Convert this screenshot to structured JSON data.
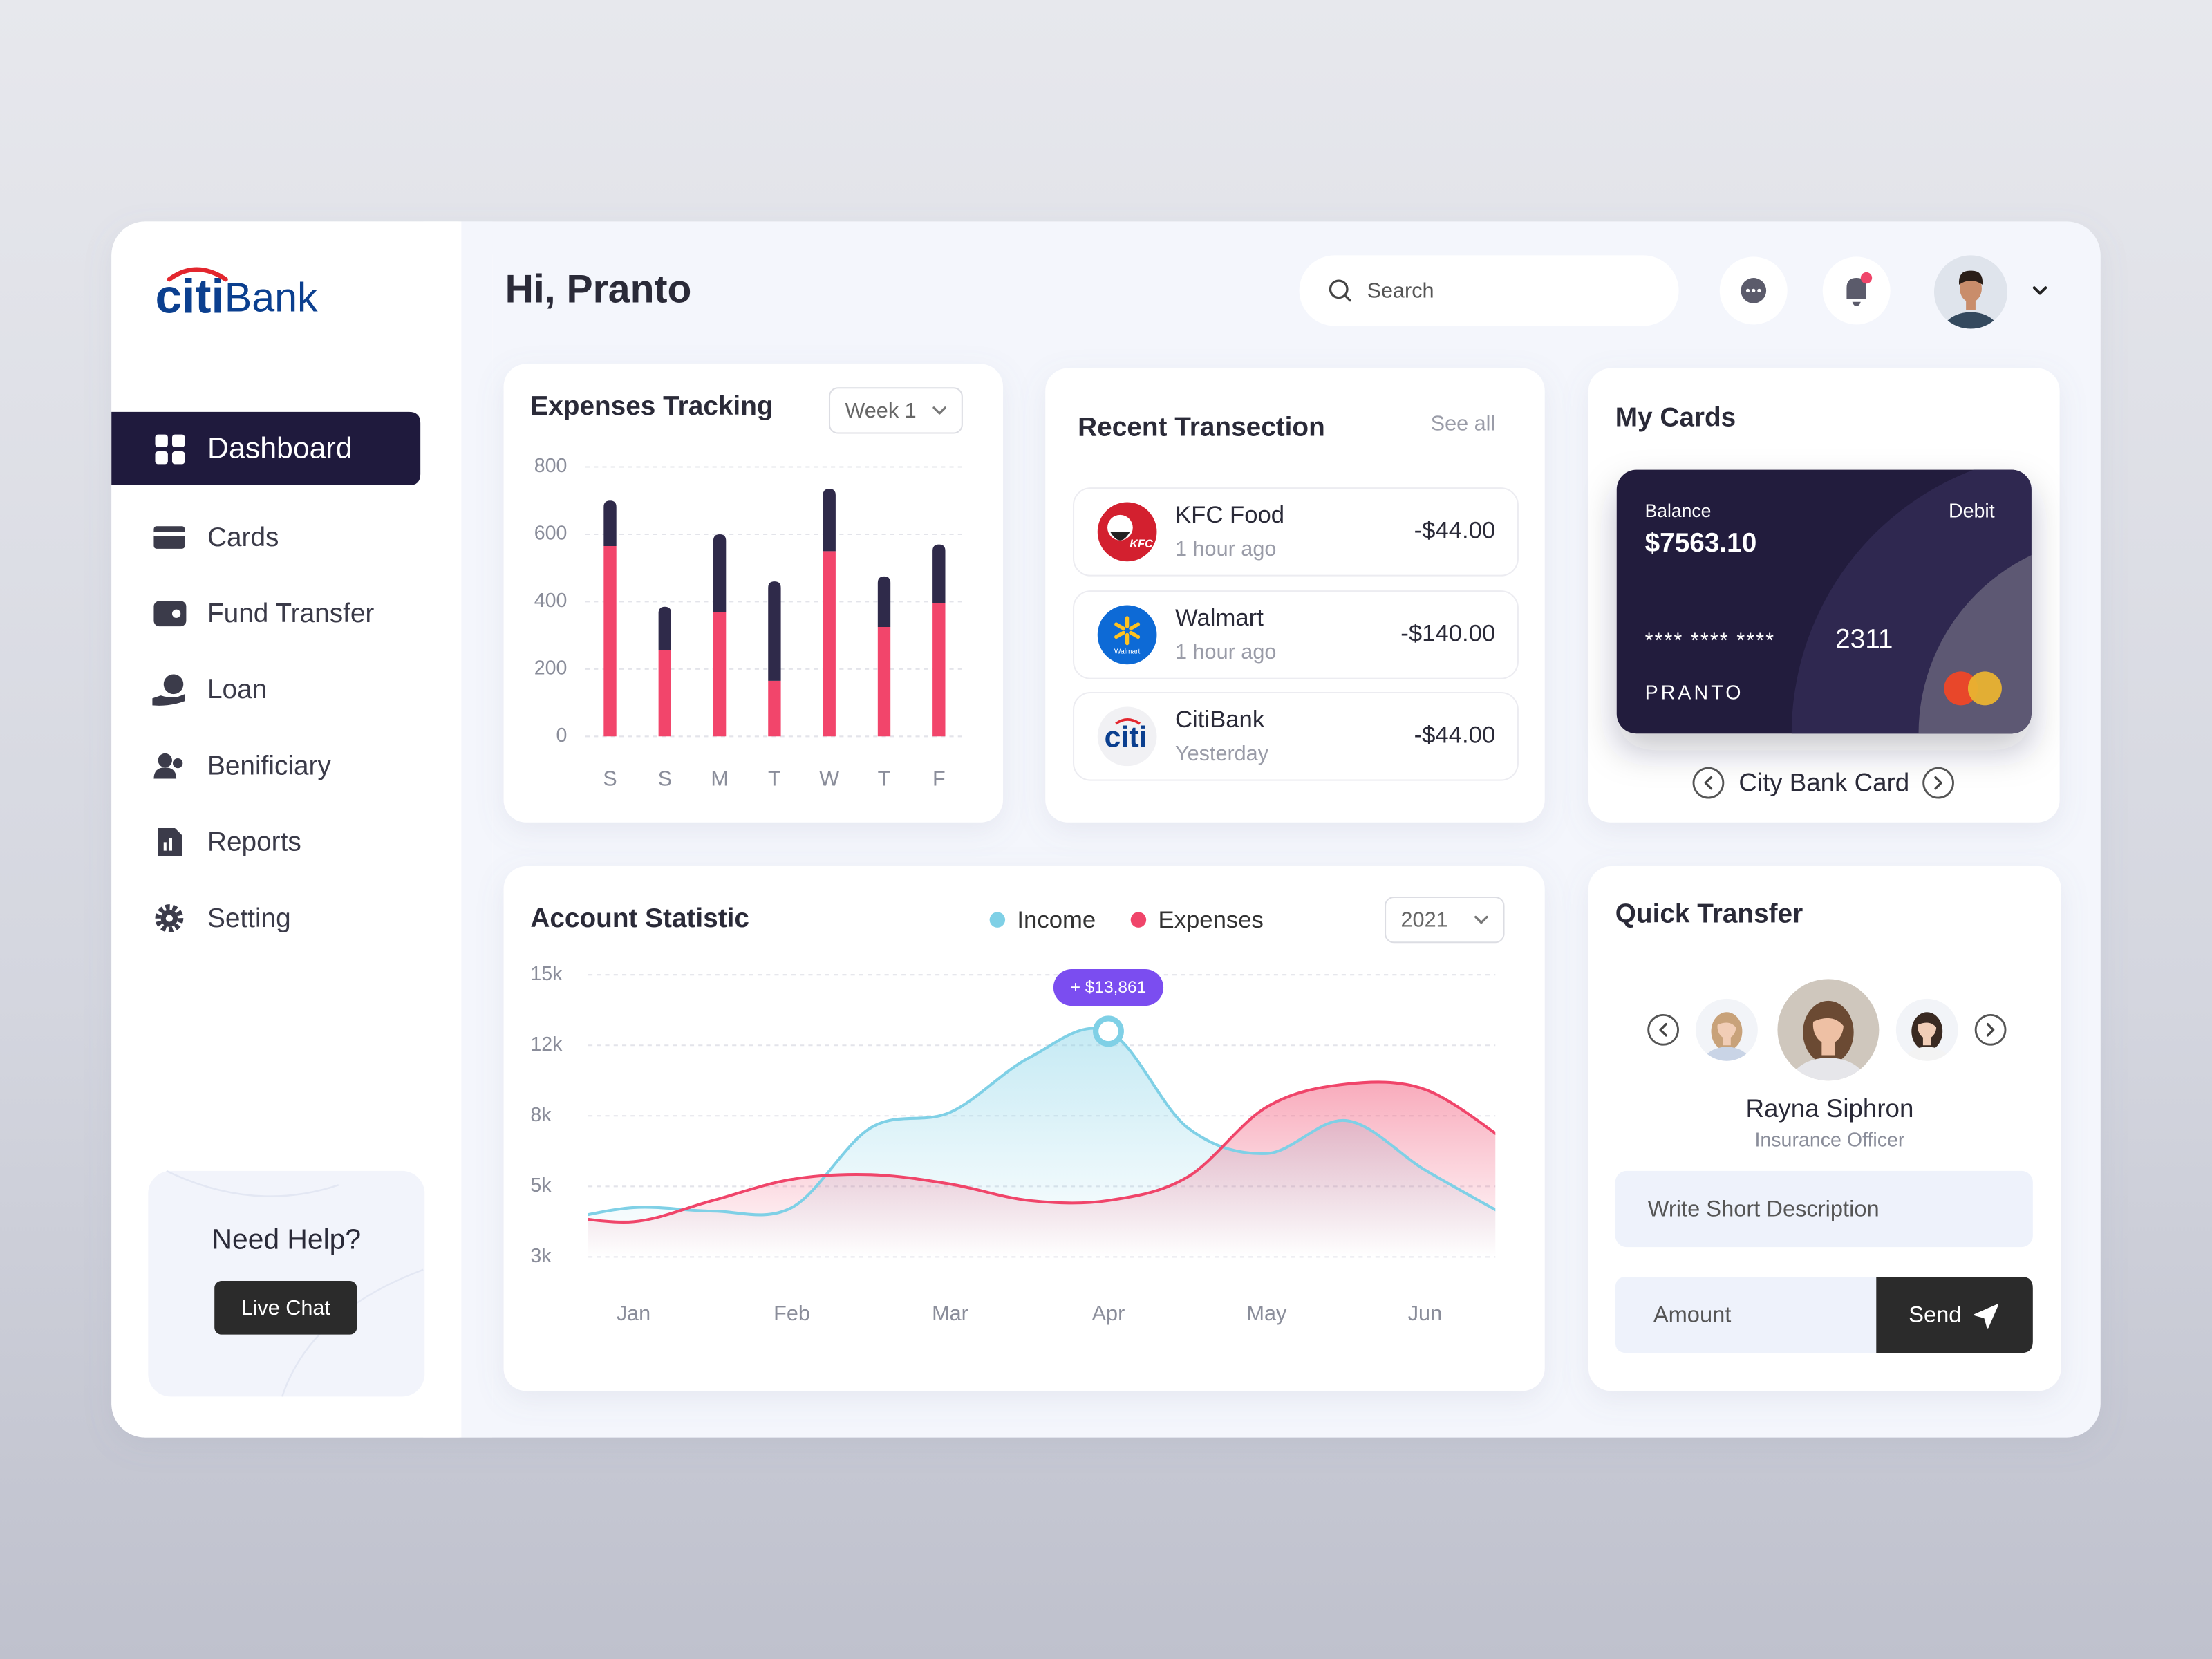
{
  "sidebar": {
    "logo": {
      "first": "citi",
      "second": "Bank"
    },
    "nav": [
      "Dashboard",
      "Cards",
      "Fund Transfer",
      "Loan",
      "Benificiary",
      "Reports",
      "Setting"
    ],
    "help": {
      "title": "Need Help?",
      "button": "Live Chat"
    }
  },
  "header": {
    "greeting": "Hi, Pranto",
    "search": "Search"
  },
  "filters": {
    "expenses": "Week 1",
    "statistic": "2021"
  },
  "chart_data": [
    {
      "type": "bar",
      "stacked": true,
      "title": "Expenses Tracking",
      "categories": [
        "S",
        "S",
        "M",
        "T",
        "W",
        "T",
        "F"
      ],
      "series": [
        {
          "color": "#f2456b",
          "values": [
            565,
            255,
            370,
            165,
            550,
            325,
            395
          ]
        },
        {
          "color": "#2f2a4a",
          "values": [
            135,
            130,
            230,
            295,
            185,
            150,
            175
          ]
        }
      ],
      "ylim": [
        0,
        800
      ],
      "yticks": [
        0,
        200,
        400,
        600,
        800
      ],
      "grid": true
    },
    {
      "type": "area",
      "title": "Account Statistic",
      "categories": [
        null,
        "Jan",
        null,
        "Feb",
        null,
        "Mar",
        null,
        "Apr",
        null,
        "May",
        null,
        "Jun",
        null
      ],
      "series": [
        {
          "name": "Income",
          "color": "#7fd0e6",
          "values": [
            4000,
            4400,
            4300,
            4400,
            7500,
            8200,
            11300,
            12600,
            7500,
            6400,
            7800,
            5700,
            4200
          ]
        },
        {
          "name": "Expenses",
          "color": "#f0456a",
          "values": [
            4200,
            4000,
            4600,
            5300,
            5500,
            5100,
            4600,
            4600,
            5400,
            8500,
            9800,
            9500,
            7000
          ]
        }
      ],
      "ylim": [
        3000,
        15000
      ],
      "yticks": [
        {
          "value": 3000,
          "label": "3k"
        },
        {
          "value": 5000,
          "label": "5k"
        },
        {
          "value": 8000,
          "label": "8k"
        },
        {
          "value": 12000,
          "label": "12k"
        },
        {
          "value": 15000,
          "label": "15k"
        }
      ],
      "grid": true,
      "legend": "top",
      "annotation": "+ $13,861"
    }
  ],
  "transactions": {
    "title": "Recent Transection",
    "link": "See all",
    "items": [
      {
        "logo": "KFC",
        "name": "KFC Food",
        "time": "1 hour ago",
        "amount": "-$44.00"
      },
      {
        "logo": "Walmart",
        "name": "Walmart",
        "time": "1 hour ago",
        "amount": "-$140.00"
      },
      {
        "logo": "citi",
        "name": "CitiBank",
        "time": "Yesterday",
        "amount": "-$44.00"
      }
    ]
  },
  "cards": {
    "title": "My Cards",
    "balance_label": "Balance",
    "balance": "$7563.10",
    "kind": "Debit",
    "masked": "**** **** ****",
    "last4": "2311",
    "holder": "PRANTO",
    "card_name": "City Bank Card"
  },
  "quick_transfer": {
    "title": "Quick Transfer",
    "person": "Rayna Siphron",
    "role": "Insurance Officer",
    "description": "Write Short Description",
    "amount": "Amount",
    "button": "Send"
  }
}
